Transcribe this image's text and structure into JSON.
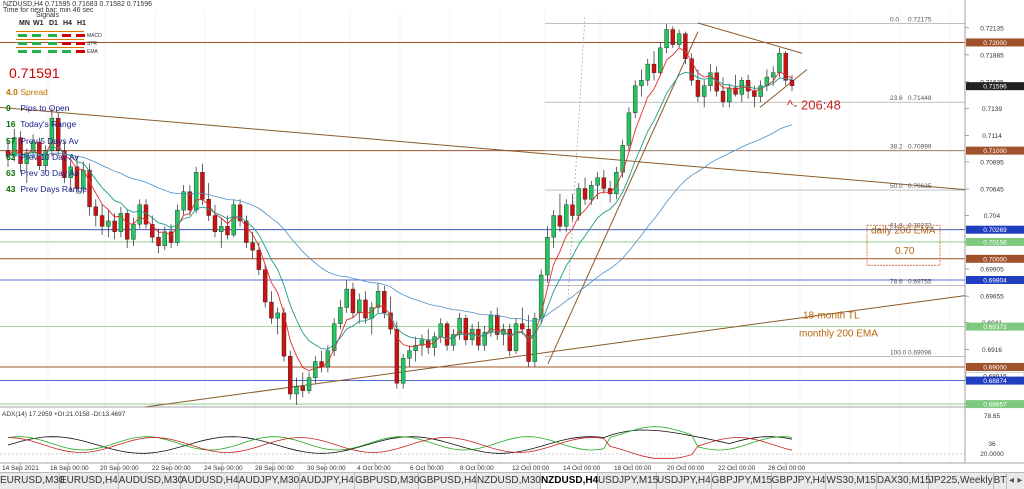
{
  "header": {
    "symbol_line": "NZDUSD,H4  0.71595 0.71683 0.71582 0.71596",
    "subtitle": "Time for next bar: min 46 sec",
    "signals_label": "Signals"
  },
  "signals": {
    "timeframes": [
      "MN",
      "W1",
      "D1",
      "H4",
      "H1"
    ],
    "rows": [
      {
        "label": "MACD",
        "colors": [
          "#22b14c",
          "#22b14c",
          "#22b14c",
          "#d00000",
          "#d00000"
        ]
      },
      {
        "label": "STR",
        "colors": [
          "#22b14c",
          "#22b14c",
          "#22b14c",
          "#d00000",
          "#d00000"
        ]
      },
      {
        "label": "EMA",
        "colors": [
          "#22b14c",
          "#22b14c",
          "#22b14c",
          "#22b14c",
          "#d00000"
        ]
      }
    ],
    "row_bar_color": "#e07000"
  },
  "price_readout": "0.71591",
  "info_panel": [
    {
      "num": "4.0",
      "label": "Spread"
    },
    {
      "num": "0",
      "label": "Pips to Open"
    },
    {
      "num": "16",
      "label": "Today's Range"
    },
    {
      "num": "57",
      "label": "Prev 5 Days Av"
    },
    {
      "num": "62",
      "label": "Prev 10 Day Av"
    },
    {
      "num": "63",
      "label": "Prev 30 Day Av"
    },
    {
      "num": "43",
      "label": "Prev Days Range"
    }
  ],
  "chart_data": {
    "type": "candlestick",
    "symbol": "NZDUSD",
    "timeframe": "H4",
    "y_axis": {
      "range": [
        0.6863,
        0.723
      ],
      "ticks": [
        0.72135,
        0.71885,
        0.71635,
        0.7139,
        0.7114,
        0.70895,
        0.70645,
        0.704,
        0.7015,
        0.69905,
        0.69655,
        0.6941,
        0.6916,
        0.6891,
        0.68665
      ]
    },
    "x_axis": {
      "ticks": [
        "14 Sep 2021",
        "16 Sep 00:00",
        "20 Sep 00:00",
        "22 Sep 00:00",
        "24 Sep 00:00",
        "28 Sep 00:00",
        "30 Sep 00:00",
        "4 Oct 00:00",
        "6 Oct 00:00",
        "8 Oct 00:00",
        "12 Oct 00:00",
        "14 Oct 00:00",
        "18 Oct 00:00",
        "20 Oct 00:00",
        "22 Oct 00:00",
        "26 Oct 00:00"
      ]
    },
    "price_labels": [
      {
        "value": "0.72000",
        "color": "#a0522d"
      },
      {
        "value": "0.71596",
        "color": "#222222",
        "text_color": "#ffffff"
      },
      {
        "value": "0.71000",
        "color": "#a0522d"
      },
      {
        "value": "0.70269",
        "color": "#1f3fbf"
      },
      {
        "value": "0.70156",
        "color": "#7ec97e"
      },
      {
        "value": "0.70000",
        "color": "#a0522d"
      },
      {
        "value": "0.69804",
        "color": "#1f3fbf"
      },
      {
        "value": "0.69373",
        "color": "#7ec97e"
      },
      {
        "value": "0.69000",
        "color": "#a0522d"
      },
      {
        "value": "0.68915",
        "color": "#ffffff",
        "text_color": "#333333"
      },
      {
        "value": "0.68874",
        "color": "#1f3fbf"
      },
      {
        "value": "0.68657",
        "color": "#7ec97e"
      }
    ],
    "fibonacci": [
      {
        "level": "0.0",
        "price": "0.72175"
      },
      {
        "level": "23.6",
        "price": "0.71448"
      },
      {
        "level": "38.2",
        "price": "0.70999"
      },
      {
        "level": "50.0",
        "price": "0.70635"
      },
      {
        "level": "61.8",
        "price": "0.70272"
      },
      {
        "level": "78.6",
        "price": "0.69755"
      },
      {
        "level": "100.0",
        "price": "0.69096"
      }
    ],
    "annotations": {
      "countdown": "^- 206:48",
      "daily_ema_line1": "daily 200 EMA",
      "daily_ema_line2": "0.70",
      "trendline": "18-month TL",
      "monthly_ema": "monthly 200 EMA"
    },
    "candles": [
      [
        0.71,
        0.711,
        0.7085,
        0.7095
      ],
      [
        0.7095,
        0.712,
        0.709,
        0.7112
      ],
      [
        0.7112,
        0.7118,
        0.708,
        0.7088
      ],
      [
        0.7088,
        0.7102,
        0.707,
        0.7098
      ],
      [
        0.7098,
        0.7115,
        0.7092,
        0.7108
      ],
      [
        0.7108,
        0.7112,
        0.7082,
        0.7086
      ],
      [
        0.7086,
        0.7105,
        0.708,
        0.71
      ],
      [
        0.71,
        0.714,
        0.7095,
        0.713
      ],
      [
        0.713,
        0.7135,
        0.7095,
        0.71
      ],
      [
        0.71,
        0.7108,
        0.707,
        0.7075
      ],
      [
        0.7075,
        0.7092,
        0.7062,
        0.7085
      ],
      [
        0.7085,
        0.7095,
        0.706,
        0.7065
      ],
      [
        0.7065,
        0.709,
        0.706,
        0.7082
      ],
      [
        0.7082,
        0.7088,
        0.704,
        0.7048
      ],
      [
        0.7048,
        0.7055,
        0.703,
        0.704
      ],
      [
        0.704,
        0.705,
        0.7022,
        0.703
      ],
      [
        0.703,
        0.7045,
        0.702,
        0.7035
      ],
      [
        0.7035,
        0.7042,
        0.7018,
        0.7025
      ],
      [
        0.7025,
        0.7048,
        0.702,
        0.7042
      ],
      [
        0.7042,
        0.7045,
        0.701,
        0.7018
      ],
      [
        0.7018,
        0.7038,
        0.7012,
        0.7032
      ],
      [
        0.7032,
        0.7055,
        0.7028,
        0.705
      ],
      [
        0.705,
        0.7055,
        0.7028,
        0.7032
      ],
      [
        0.7032,
        0.704,
        0.7015,
        0.702
      ],
      [
        0.702,
        0.7028,
        0.7005,
        0.7012
      ],
      [
        0.7012,
        0.703,
        0.7008,
        0.7025
      ],
      [
        0.7025,
        0.7032,
        0.701,
        0.7015
      ],
      [
        0.7015,
        0.705,
        0.7012,
        0.7045
      ],
      [
        0.7045,
        0.7068,
        0.704,
        0.7062
      ],
      [
        0.7062,
        0.7068,
        0.704,
        0.7045
      ],
      [
        0.7045,
        0.7085,
        0.7042,
        0.708
      ],
      [
        0.708,
        0.7088,
        0.705,
        0.7055
      ],
      [
        0.7055,
        0.707,
        0.7035,
        0.704
      ],
      [
        0.704,
        0.705,
        0.702,
        0.7025
      ],
      [
        0.7025,
        0.7038,
        0.701,
        0.703
      ],
      [
        0.703,
        0.704,
        0.7018,
        0.7022
      ],
      [
        0.7022,
        0.7055,
        0.702,
        0.705
      ],
      [
        0.705,
        0.7055,
        0.703,
        0.7035
      ],
      [
        0.7035,
        0.704,
        0.701,
        0.7015
      ],
      [
        0.7015,
        0.7025,
        0.7,
        0.7008
      ],
      [
        0.7008,
        0.7015,
        0.6985,
        0.699
      ],
      [
        0.699,
        0.6995,
        0.6955,
        0.696
      ],
      [
        0.696,
        0.697,
        0.694,
        0.6945
      ],
      [
        0.6945,
        0.6955,
        0.693,
        0.695
      ],
      [
        0.695,
        0.6955,
        0.6905,
        0.691
      ],
      [
        0.691,
        0.6915,
        0.687,
        0.6875
      ],
      [
        0.6875,
        0.689,
        0.6865,
        0.6882
      ],
      [
        0.6882,
        0.6895,
        0.6872,
        0.6878
      ],
      [
        0.6878,
        0.6895,
        0.6875,
        0.689
      ],
      [
        0.689,
        0.691,
        0.6885,
        0.6905
      ],
      [
        0.6905,
        0.6915,
        0.6895,
        0.69
      ],
      [
        0.69,
        0.692,
        0.6895,
        0.6915
      ],
      [
        0.6915,
        0.6945,
        0.691,
        0.694
      ],
      [
        0.694,
        0.6962,
        0.6935,
        0.6955
      ],
      [
        0.6955,
        0.698,
        0.695,
        0.6972
      ],
      [
        0.6972,
        0.6978,
        0.6945,
        0.695
      ],
      [
        0.695,
        0.6968,
        0.694,
        0.6962
      ],
      [
        0.6962,
        0.697,
        0.694,
        0.6945
      ],
      [
        0.6945,
        0.696,
        0.693,
        0.6955
      ],
      [
        0.6955,
        0.6978,
        0.695,
        0.697
      ],
      [
        0.697,
        0.6975,
        0.6945,
        0.695
      ],
      [
        0.695,
        0.6965,
        0.693,
        0.6935
      ],
      [
        0.6935,
        0.6942,
        0.688,
        0.6885
      ],
      [
        0.6885,
        0.6912,
        0.688,
        0.6908
      ],
      [
        0.6908,
        0.692,
        0.69,
        0.6915
      ],
      [
        0.6915,
        0.6928,
        0.6905,
        0.692
      ],
      [
        0.692,
        0.693,
        0.691,
        0.6925
      ],
      [
        0.6925,
        0.6935,
        0.6912,
        0.6918
      ],
      [
        0.6918,
        0.6932,
        0.691,
        0.6928
      ],
      [
        0.6928,
        0.6945,
        0.6922,
        0.694
      ],
      [
        0.694,
        0.6942,
        0.6915,
        0.692
      ],
      [
        0.692,
        0.6935,
        0.6915,
        0.693
      ],
      [
        0.693,
        0.695,
        0.6925,
        0.6945
      ],
      [
        0.6945,
        0.6948,
        0.692,
        0.6925
      ],
      [
        0.6925,
        0.694,
        0.692,
        0.6935
      ],
      [
        0.6935,
        0.6942,
        0.6915,
        0.692
      ],
      [
        0.692,
        0.6938,
        0.6915,
        0.6932
      ],
      [
        0.6932,
        0.6952,
        0.6928,
        0.6948
      ],
      [
        0.6948,
        0.6955,
        0.6925,
        0.693
      ],
      [
        0.693,
        0.694,
        0.692,
        0.6935
      ],
      [
        0.6935,
        0.694,
        0.691,
        0.6915
      ],
      [
        0.6915,
        0.6945,
        0.6912,
        0.694
      ],
      [
        0.694,
        0.6955,
        0.693,
        0.6935
      ],
      [
        0.6935,
        0.6948,
        0.69,
        0.6905
      ],
      [
        0.6905,
        0.695,
        0.69,
        0.6945
      ],
      [
        0.6945,
        0.699,
        0.694,
        0.6985
      ],
      [
        0.6985,
        0.703,
        0.6978,
        0.702
      ],
      [
        0.702,
        0.7045,
        0.701,
        0.704
      ],
      [
        0.704,
        0.706,
        0.7025,
        0.703
      ],
      [
        0.703,
        0.7055,
        0.7025,
        0.705
      ],
      [
        0.705,
        0.706,
        0.7035,
        0.704
      ],
      [
        0.704,
        0.707,
        0.7035,
        0.7065
      ],
      [
        0.7065,
        0.7075,
        0.705,
        0.7055
      ],
      [
        0.7055,
        0.7072,
        0.705,
        0.7068
      ],
      [
        0.7068,
        0.708,
        0.7055,
        0.7075
      ],
      [
        0.7075,
        0.7082,
        0.706,
        0.7065
      ],
      [
        0.7065,
        0.7072,
        0.7052,
        0.706
      ],
      [
        0.706,
        0.7085,
        0.7055,
        0.708
      ],
      [
        0.708,
        0.711,
        0.7075,
        0.7105
      ],
      [
        0.7105,
        0.714,
        0.71,
        0.7135
      ],
      [
        0.7135,
        0.7165,
        0.713,
        0.716
      ],
      [
        0.716,
        0.7175,
        0.715,
        0.7165
      ],
      [
        0.7165,
        0.7185,
        0.716,
        0.718
      ],
      [
        0.718,
        0.7192,
        0.7165,
        0.7172
      ],
      [
        0.7172,
        0.72,
        0.717,
        0.7195
      ],
      [
        0.7195,
        0.7217,
        0.719,
        0.7212
      ],
      [
        0.7212,
        0.7215,
        0.7195,
        0.7198
      ],
      [
        0.7198,
        0.7212,
        0.7195,
        0.7208
      ],
      [
        0.7208,
        0.721,
        0.718,
        0.7185
      ],
      [
        0.7185,
        0.719,
        0.716,
        0.7165
      ],
      [
        0.7165,
        0.7175,
        0.7145,
        0.715
      ],
      [
        0.715,
        0.7165,
        0.714,
        0.716
      ],
      [
        0.716,
        0.718,
        0.7155,
        0.7172
      ],
      [
        0.7172,
        0.7178,
        0.715,
        0.7155
      ],
      [
        0.7155,
        0.7168,
        0.714,
        0.7145
      ],
      [
        0.7145,
        0.7162,
        0.714,
        0.7158
      ],
      [
        0.7158,
        0.717,
        0.715,
        0.7152
      ],
      [
        0.7152,
        0.7168,
        0.7145,
        0.7165
      ],
      [
        0.7165,
        0.717,
        0.7148,
        0.7155
      ],
      [
        0.7155,
        0.716,
        0.714,
        0.715
      ],
      [
        0.715,
        0.7165,
        0.7145,
        0.716
      ],
      [
        0.716,
        0.7175,
        0.7155,
        0.7168
      ],
      [
        0.7168,
        0.7178,
        0.716,
        0.7172
      ],
      [
        0.7172,
        0.7195,
        0.7168,
        0.719
      ],
      [
        0.719,
        0.7192,
        0.716,
        0.7165
      ],
      [
        0.7165,
        0.717,
        0.7155,
        0.716
      ]
    ],
    "adx_panel": {
      "label": "ADX(14) 17.2959 +DI:21.0158 -DI:13.4697",
      "ticks": [
        "78.65",
        "36",
        "20.0000"
      ],
      "range": [
        0,
        100
      ]
    }
  },
  "tabs": [
    "EURUSD,M30",
    "EURUSD,H4",
    "AUDUSD,M30",
    "AUDUSD,H4",
    "AUDJPY,M30",
    "AUDJPY,H4",
    "GBPUSD,M30",
    "GBPUSD,H4",
    "NZDUSD,M30",
    "NZDUSD,H4",
    "USDJPY,M15",
    "USDJPY,H4",
    "GBPJPY,M15",
    "GBPJPY,H4",
    "WS30,M15",
    "DAX30,M15",
    "JP225,Weekly",
    "BT"
  ],
  "active_tab": "NZDUSD,H4",
  "nav": {
    "left": "◂",
    "right": "▸"
  }
}
